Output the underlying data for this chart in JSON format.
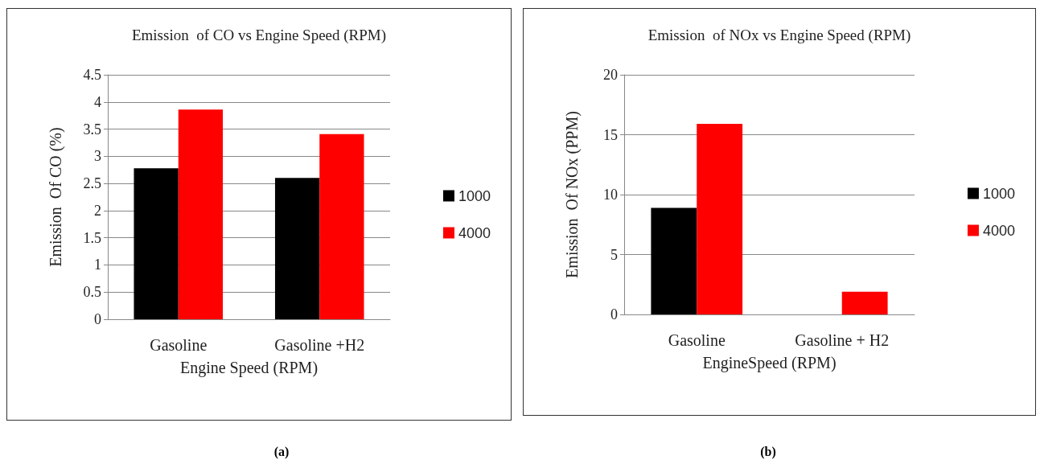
{
  "chart_data": [
    {
      "type": "bar",
      "title": "Emission  of CO vs Engine Speed (RPM)",
      "xlabel": "Engine Speed (RPM)",
      "ylabel": "Emission  Of CO (%)",
      "categories": [
        "Gasoline",
        "Gasoline +H2"
      ],
      "series": [
        {
          "name": "1000",
          "color": "#000000",
          "values": [
            2.78,
            2.6
          ]
        },
        {
          "name": "4000",
          "color": "#ff0000",
          "values": [
            3.86,
            3.41
          ]
        }
      ],
      "ylim": [
        0,
        4.5
      ],
      "yticks": [
        0,
        0.5,
        1,
        1.5,
        2,
        2.5,
        3,
        3.5,
        4,
        4.5
      ],
      "grid": "y",
      "legend": "right",
      "annotations": [
        "(a)"
      ]
    },
    {
      "type": "bar",
      "title": "Emission  of NOx vs Engine Speed (RPM)",
      "xlabel": "EngineSpeed (RPM)",
      "ylabel": "Emission  Of NOx (PPM)",
      "categories": [
        "Gasoline",
        "Gasoline + H2"
      ],
      "series": [
        {
          "name": "1000",
          "color": "#000000",
          "values": [
            8.9,
            0
          ]
        },
        {
          "name": "4000",
          "color": "#ff0000",
          "values": [
            15.9,
            1.9
          ]
        }
      ],
      "ylim": [
        0,
        20
      ],
      "yticks": [
        0,
        5,
        10,
        15,
        20
      ],
      "grid": "y",
      "legend": "right",
      "annotations": [
        "(b)"
      ]
    }
  ]
}
